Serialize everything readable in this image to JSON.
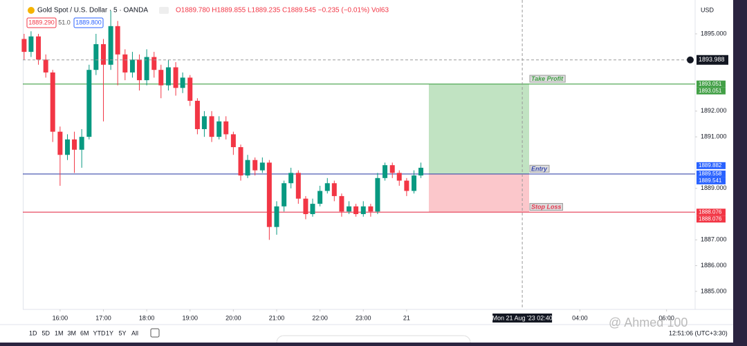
{
  "header": {
    "symbol": "Gold Spot / U.S. Dollar · 5 · OANDA",
    "ohlc": "O1889.780 H1889.855 L1889.235 C1889.545 −0.235 (−0.01%) Vol63",
    "bid": "1889.290",
    "spread": "51.0",
    "ask": "1889.800",
    "currency": "USD"
  },
  "toolbar": {
    "ranges": [
      "1D",
      "5D",
      "1M",
      "3M",
      "6M",
      "YTD",
      "1Y",
      "5Y",
      "All"
    ],
    "clock": "12:51:06 (UTC+3:30)",
    "watermark": "@ Ahmed 100"
  },
  "chart_data": {
    "type": "candlestick",
    "x": [
      15.17,
      15.33,
      15.5,
      15.67,
      15.83,
      16,
      16.17,
      16.33,
      16.5,
      16.67,
      16.83,
      17,
      17.17,
      17.33,
      17.5,
      17.67,
      17.83,
      18,
      18.17,
      18.33,
      18.5,
      18.67,
      18.83,
      19,
      19.17,
      19.33,
      19.5,
      19.67,
      19.83,
      20,
      20.17,
      20.33,
      20.5,
      20.67,
      20.83,
      21,
      21.17,
      21.33,
      21.5,
      21.67,
      21.83,
      22,
      22.17,
      22.33,
      22.5,
      22.67,
      22.83,
      23,
      23.17,
      23.33,
      23.5,
      23.67,
      23.83,
      24,
      24.17,
      24.33
    ],
    "open": [
      1894.8,
      1894.3,
      1894.9,
      1894.0,
      1893.5,
      1891.2,
      1890.3,
      1890.9,
      1890.5,
      1891.0,
      1893.6,
      1894.6,
      1893.8,
      1895.3,
      1894.2,
      1893.5,
      1894.0,
      1893.2,
      1894.1,
      1893.6,
      1893.0,
      1893.7,
      1892.9,
      1893.3,
      1892.4,
      1891.3,
      1891.8,
      1891.0,
      1891.6,
      1891.1,
      1890.6,
      1889.5,
      1890.1,
      1889.7,
      1890.0,
      1887.5,
      1888.3,
      1889.2,
      1889.6,
      1888.6,
      1888.0,
      1888.4,
      1888.9,
      1889.2,
      1888.7,
      1888.1,
      1888.3,
      1888.0,
      1888.3,
      1888.1,
      1889.4,
      1889.9,
      1889.6,
      1889.3,
      1888.9,
      1889.5
    ],
    "high": [
      1895.0,
      1895.1,
      1895.0,
      1894.2,
      1893.6,
      1891.4,
      1891.1,
      1891.2,
      1891.3,
      1893.8,
      1895.0,
      1894.8,
      1895.9,
      1895.5,
      1894.4,
      1894.3,
      1894.2,
      1894.4,
      1894.3,
      1893.8,
      1894.0,
      1893.9,
      1893.5,
      1893.4,
      1892.5,
      1892.0,
      1892.0,
      1891.8,
      1891.8,
      1891.2,
      1890.7,
      1890.3,
      1890.2,
      1890.2,
      1890.1,
      1888.5,
      1889.3,
      1889.8,
      1889.7,
      1888.7,
      1888.6,
      1889.1,
      1889.4,
      1889.3,
      1888.8,
      1888.5,
      1888.4,
      1888.5,
      1888.4,
      1889.6,
      1890.0,
      1890.0,
      1889.7,
      1889.4,
      1889.7,
      1890.0
    ],
    "low": [
      1894.0,
      1894.1,
      1893.8,
      1893.3,
      1890.8,
      1889.1,
      1890.1,
      1889.6,
      1889.8,
      1890.9,
      1893.4,
      1891.6,
      1893.6,
      1893.0,
      1893.2,
      1893.3,
      1892.8,
      1893.0,
      1893.3,
      1892.5,
      1892.8,
      1892.6,
      1892.7,
      1892.2,
      1891.1,
      1891.0,
      1890.8,
      1890.9,
      1890.9,
      1890.3,
      1889.3,
      1889.4,
      1889.5,
      1889.6,
      1887.0,
      1887.2,
      1888.1,
      1889.0,
      1888.4,
      1887.8,
      1887.9,
      1888.3,
      1888.8,
      1888.5,
      1887.9,
      1888.0,
      1887.9,
      1887.9,
      1887.9,
      1888.0,
      1889.3,
      1889.4,
      1889.1,
      1888.7,
      1888.8,
      1889.4
    ],
    "close": [
      1894.3,
      1894.9,
      1894.0,
      1893.5,
      1891.2,
      1890.3,
      1890.9,
      1890.5,
      1891.0,
      1893.6,
      1894.6,
      1893.8,
      1895.3,
      1894.2,
      1893.5,
      1894.0,
      1893.2,
      1894.1,
      1893.6,
      1893.0,
      1893.7,
      1892.9,
      1893.3,
      1892.4,
      1891.3,
      1891.8,
      1891.0,
      1891.6,
      1891.1,
      1890.6,
      1889.5,
      1890.1,
      1889.7,
      1890.0,
      1887.5,
      1888.3,
      1889.2,
      1889.6,
      1888.6,
      1888.0,
      1888.4,
      1888.9,
      1889.2,
      1888.7,
      1888.1,
      1888.3,
      1888.0,
      1888.3,
      1888.1,
      1889.4,
      1889.9,
      1889.6,
      1889.3,
      1888.9,
      1889.5,
      1889.8
    ],
    "up_color": "#089981",
    "down_color": "#f23645",
    "xlim": [
      15.14,
      30.66
    ],
    "xticks": [
      {
        "value": 16,
        "label": "16:00"
      },
      {
        "value": 17,
        "label": "17:00"
      },
      {
        "value": 18,
        "label": "18:00"
      },
      {
        "value": 19,
        "label": "19:00"
      },
      {
        "value": 20,
        "label": "20:00"
      },
      {
        "value": 21,
        "label": "21:00"
      },
      {
        "value": 22,
        "label": "22:00"
      },
      {
        "value": 23,
        "label": "23:00"
      },
      {
        "value": 24,
        "label": "21"
      },
      {
        "value": 28,
        "label": "04:00"
      },
      {
        "value": 30,
        "label": "06:00"
      }
    ],
    "ylim": [
      1884.38,
      1896.18
    ],
    "yticks": [
      {
        "value": 1895,
        "label": "1895.000"
      },
      {
        "value": 1892,
        "label": "1892.000"
      },
      {
        "value": 1891,
        "label": "1891.000"
      },
      {
        "value": 1889,
        "label": "1889.000"
      },
      {
        "value": 1887,
        "label": "1887.000"
      },
      {
        "value": 1886,
        "label": "1886.000"
      },
      {
        "value": 1885,
        "label": "1885.000"
      }
    ],
    "position": {
      "take_profit": 1893.051,
      "entry": 1889.558,
      "stop_loss": 1888.076,
      "take_profit_label": "Take Profit",
      "entry_label": "Entry",
      "stop_loss_label": "Stop Loss"
    },
    "crosshair": {
      "price": {
        "value": 1893.988,
        "label": "1893.988"
      },
      "time": 26.67,
      "time_label": "Mon 21 Aug '23   02:40"
    },
    "axis_labels": [
      {
        "value": 1893.051,
        "label": "1893.051",
        "color": "#43a047"
      },
      {
        "value": 1893.051,
        "label": "1893.051",
        "color": "#43a047"
      },
      {
        "value": 1889.882,
        "label": "1889.882",
        "color": "#2962ff"
      },
      {
        "value": 1889.558,
        "label": "1889.558",
        "color": "#2962ff"
      },
      {
        "value": 1889.541,
        "label": "1889.541",
        "color": "#2962ff"
      },
      {
        "value": 1888.076,
        "label": "1888.076",
        "color": "#f23645"
      },
      {
        "value": 1888.076,
        "label": "1888.076",
        "color": "#f23645"
      }
    ]
  }
}
